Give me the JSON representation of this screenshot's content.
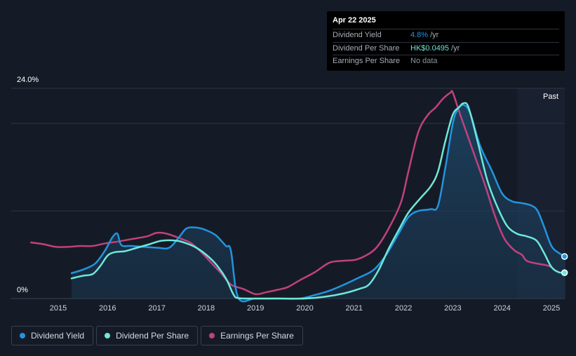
{
  "tooltip": {
    "date": "Apr 22 2025",
    "rows": [
      {
        "label": "Dividend Yield",
        "value": "4.8%",
        "unit": "/yr",
        "color": "#2394df"
      },
      {
        "label": "Dividend Per Share",
        "value": "HK$0.0495",
        "unit": "/yr",
        "color": "#6de8d9"
      },
      {
        "label": "Earnings Per Share",
        "value": "No data",
        "unit": "",
        "color": "#8c929c"
      }
    ]
  },
  "past_label": "Past",
  "legend": [
    {
      "label": "Dividend Yield",
      "color": "#2394df"
    },
    {
      "label": "Dividend Per Share",
      "color": "#6de8d9"
    },
    {
      "label": "Earnings Per Share",
      "color": "#c1417d"
    }
  ],
  "chart_data": {
    "type": "line",
    "y_max_label": "24.0%",
    "y_min_label": "0%",
    "ylim": [
      0,
      24
    ],
    "xlim": [
      2014.45,
      2025.28
    ],
    "x_ticks": [
      2015,
      2016,
      2017,
      2018,
      2019,
      2020,
      2021,
      2022,
      2023,
      2024,
      2025
    ],
    "gridlines": [
      0,
      10,
      20,
      24
    ],
    "past_region_start": 2024.31,
    "series": [
      {
        "name": "Dividend Yield",
        "color": "#2394df",
        "points": [
          [
            2015.27,
            2.9
          ],
          [
            2015.5,
            3.3
          ],
          [
            2015.75,
            4.0
          ],
          [
            2015.95,
            5.5
          ],
          [
            2016.1,
            7.0
          ],
          [
            2016.2,
            7.4
          ],
          [
            2016.28,
            6.1
          ],
          [
            2016.5,
            6.0
          ],
          [
            2017.0,
            5.8
          ],
          [
            2017.25,
            5.8
          ],
          [
            2017.45,
            7.0
          ],
          [
            2017.6,
            8.0
          ],
          [
            2017.8,
            8.1
          ],
          [
            2018.0,
            7.8
          ],
          [
            2018.2,
            7.2
          ],
          [
            2018.4,
            6.0
          ],
          [
            2018.5,
            5.5
          ],
          [
            2018.65,
            0.1
          ],
          [
            2019.0,
            0
          ],
          [
            2019.5,
            0
          ],
          [
            2019.9,
            0
          ],
          [
            2020.2,
            0.4
          ],
          [
            2020.5,
            0.9
          ],
          [
            2020.8,
            1.6
          ],
          [
            2021.1,
            2.4
          ],
          [
            2021.4,
            3.3
          ],
          [
            2021.65,
            5.0
          ],
          [
            2021.9,
            7.4
          ],
          [
            2022.1,
            9.3
          ],
          [
            2022.3,
            10.0
          ],
          [
            2022.55,
            10.2
          ],
          [
            2022.7,
            10.6
          ],
          [
            2022.85,
            15.0
          ],
          [
            2023.0,
            20.0
          ],
          [
            2023.1,
            21.6
          ],
          [
            2023.22,
            22.1
          ],
          [
            2023.35,
            21.2
          ],
          [
            2023.55,
            17.5
          ],
          [
            2023.8,
            14.5
          ],
          [
            2024.0,
            12.0
          ],
          [
            2024.2,
            11.1
          ],
          [
            2024.4,
            10.9
          ],
          [
            2024.6,
            10.6
          ],
          [
            2024.72,
            10.0
          ],
          [
            2024.85,
            8.2
          ],
          [
            2025.0,
            6.0
          ],
          [
            2025.15,
            5.2
          ],
          [
            2025.28,
            4.8
          ]
        ]
      },
      {
        "name": "Dividend Per Share",
        "color": "#6de8d9",
        "points": [
          [
            2015.27,
            2.3
          ],
          [
            2015.5,
            2.6
          ],
          [
            2015.7,
            2.8
          ],
          [
            2015.85,
            3.7
          ],
          [
            2016.0,
            4.9
          ],
          [
            2016.15,
            5.3
          ],
          [
            2016.35,
            5.4
          ],
          [
            2016.6,
            5.8
          ],
          [
            2016.85,
            6.2
          ],
          [
            2017.1,
            6.6
          ],
          [
            2017.4,
            6.6
          ],
          [
            2017.6,
            6.3
          ],
          [
            2017.8,
            5.8
          ],
          [
            2018.0,
            5.0
          ],
          [
            2018.2,
            3.9
          ],
          [
            2018.4,
            2.3
          ],
          [
            2018.55,
            0.5
          ],
          [
            2018.65,
            0.05
          ],
          [
            2019.0,
            0
          ],
          [
            2019.5,
            0
          ],
          [
            2020.0,
            0
          ],
          [
            2020.4,
            0.2
          ],
          [
            2020.8,
            0.6
          ],
          [
            2021.1,
            1.1
          ],
          [
            2021.3,
            1.6
          ],
          [
            2021.5,
            3.3
          ],
          [
            2021.7,
            5.7
          ],
          [
            2021.9,
            7.8
          ],
          [
            2022.1,
            9.8
          ],
          [
            2022.35,
            11.5
          ],
          [
            2022.55,
            12.8
          ],
          [
            2022.7,
            14.5
          ],
          [
            2022.85,
            18.0
          ],
          [
            2023.0,
            21.0
          ],
          [
            2023.12,
            21.8
          ],
          [
            2023.22,
            22.3
          ],
          [
            2023.32,
            21.8
          ],
          [
            2023.5,
            18.0
          ],
          [
            2023.7,
            13.5
          ],
          [
            2023.9,
            10.5
          ],
          [
            2024.1,
            8.3
          ],
          [
            2024.3,
            7.4
          ],
          [
            2024.5,
            7.1
          ],
          [
            2024.7,
            6.6
          ],
          [
            2024.85,
            5.2
          ],
          [
            2025.0,
            3.6
          ],
          [
            2025.15,
            3.0
          ],
          [
            2025.28,
            2.95
          ]
        ]
      },
      {
        "name": "Earnings Per Share",
        "color": "#c1417d",
        "points": [
          [
            2014.45,
            6.4
          ],
          [
            2014.7,
            6.2
          ],
          [
            2014.95,
            5.9
          ],
          [
            2015.2,
            5.9
          ],
          [
            2015.45,
            6.0
          ],
          [
            2015.7,
            6.0
          ],
          [
            2015.95,
            6.3
          ],
          [
            2016.2,
            6.5
          ],
          [
            2016.5,
            6.8
          ],
          [
            2016.8,
            7.1
          ],
          [
            2017.0,
            7.5
          ],
          [
            2017.2,
            7.4
          ],
          [
            2017.5,
            6.8
          ],
          [
            2017.7,
            6.3
          ],
          [
            2017.9,
            5.3
          ],
          [
            2018.1,
            4.1
          ],
          [
            2018.3,
            2.9
          ],
          [
            2018.5,
            1.6
          ],
          [
            2018.75,
            1.1
          ],
          [
            2019.0,
            0.5
          ],
          [
            2019.2,
            0.7
          ],
          [
            2019.45,
            1.0
          ],
          [
            2019.65,
            1.3
          ],
          [
            2019.9,
            2.1
          ],
          [
            2020.2,
            3.0
          ],
          [
            2020.5,
            4.1
          ],
          [
            2020.75,
            4.3
          ],
          [
            2021.0,
            4.4
          ],
          [
            2021.2,
            4.8
          ],
          [
            2021.45,
            5.8
          ],
          [
            2021.7,
            8.0
          ],
          [
            2021.95,
            11.0
          ],
          [
            2022.1,
            14.5
          ],
          [
            2022.3,
            19.0
          ],
          [
            2022.5,
            21.0
          ],
          [
            2022.65,
            21.8
          ],
          [
            2022.8,
            22.8
          ],
          [
            2022.95,
            23.5
          ],
          [
            2023.0,
            23.5
          ],
          [
            2023.15,
            21.0
          ],
          [
            2023.4,
            17.0
          ],
          [
            2023.65,
            13.0
          ],
          [
            2023.85,
            9.5
          ],
          [
            2024.05,
            6.8
          ],
          [
            2024.25,
            5.5
          ],
          [
            2024.4,
            5.0
          ],
          [
            2024.5,
            4.3
          ],
          [
            2024.7,
            4.0
          ],
          [
            2024.9,
            3.8
          ],
          [
            2025.0,
            3.6
          ]
        ]
      }
    ]
  }
}
